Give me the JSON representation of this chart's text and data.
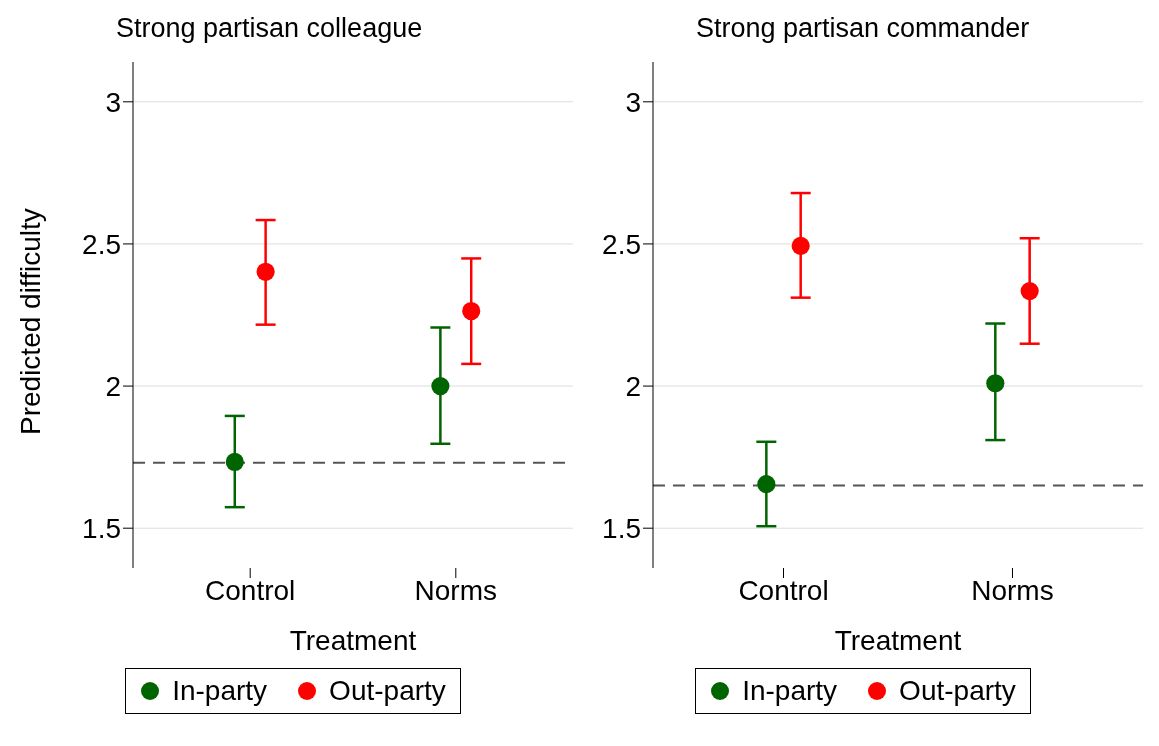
{
  "chart_data": [
    {
      "type": "scatter",
      "title": "Strong partisan colleague",
      "xlabel": "Treatment",
      "ylabel": "Predicted difficulty",
      "categories": [
        "Control",
        "Norms"
      ],
      "ylim": [
        1.36,
        3.14
      ],
      "yticks": [
        1.5,
        2,
        2.5,
        3
      ],
      "grid": "y",
      "legend": "bottom",
      "marker": "circle",
      "series": [
        {
          "name": "In-party",
          "color": "#006400",
          "values": [
            1.733,
            2.0
          ],
          "errors": [
            [
              1.574,
              1.895
            ],
            [
              1.797,
              2.206
            ]
          ]
        },
        {
          "name": "Out-party",
          "color": "#ff0000",
          "values": [
            2.402,
            2.264
          ],
          "errors": [
            [
              2.216,
              2.584
            ],
            [
              2.078,
              2.449
            ]
          ]
        }
      ],
      "ref_lines": [
        {
          "axis": "y",
          "value": 1.73,
          "color": "#555555",
          "line_style": "dashed"
        }
      ]
    },
    {
      "type": "scatter",
      "title": "Strong partisan commander",
      "xlabel": "Treatment",
      "categories": [
        "Control",
        "Norms"
      ],
      "ylim": [
        1.36,
        3.14
      ],
      "yticks": [
        1.5,
        2,
        2.5,
        3
      ],
      "grid": "y",
      "legend": "bottom",
      "marker": "circle",
      "series": [
        {
          "name": "In-party",
          "color": "#006400",
          "values": [
            1.655,
            2.01
          ],
          "errors": [
            [
              1.507,
              1.804
            ],
            [
              1.81,
              2.22
            ]
          ]
        },
        {
          "name": "Out-party",
          "color": "#ff0000",
          "values": [
            2.493,
            2.334
          ],
          "errors": [
            [
              2.311,
              2.679
            ],
            [
              2.149,
              2.52
            ]
          ]
        }
      ],
      "ref_lines": [
        {
          "axis": "y",
          "value": 1.65,
          "color": "#555555",
          "line_style": "dashed"
        }
      ]
    }
  ]
}
